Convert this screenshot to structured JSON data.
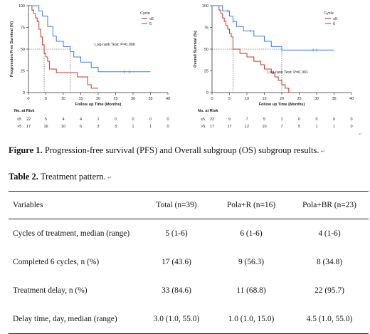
{
  "chart_data": [
    {
      "type": "line",
      "step": true,
      "ylabel": "Progression Free Survival (%)",
      "xlabel": "Follow up Time (Months)",
      "xlim": [
        0,
        40
      ],
      "ylim": [
        0,
        100
      ],
      "xticks": [
        "0",
        "5",
        "10",
        "15",
        "20",
        "25",
        "30",
        "35",
        "40"
      ],
      "yticks": [
        "0",
        "25",
        "50",
        "75",
        "100"
      ],
      "legend_title": "Cycle",
      "legend": [
        "≤5",
        "6"
      ],
      "annotation": "Log-rank Test: P=0.006",
      "series": [
        {
          "name": "≤5",
          "color": "#c0392b",
          "censor": [],
          "points": [
            [
              0,
              100
            ],
            [
              1,
              95
            ],
            [
              1.5,
              91
            ],
            [
              2,
              86
            ],
            [
              2.5,
              82
            ],
            [
              3,
              73
            ],
            [
              3.5,
              64
            ],
            [
              4,
              55
            ],
            [
              4.5,
              45
            ],
            [
              5,
              41
            ],
            [
              5.5,
              36
            ],
            [
              6,
              27
            ],
            [
              8,
              23
            ],
            [
              14,
              18
            ],
            [
              17,
              9
            ],
            [
              18,
              5
            ],
            [
              20,
              5
            ]
          ]
        },
        {
          "name": "6",
          "color": "#3b7dd8",
          "censor": [
            27.5,
            29
          ],
          "points": [
            [
              0,
              100
            ],
            [
              3,
              94
            ],
            [
              4,
              88
            ],
            [
              5.5,
              76
            ],
            [
              7,
              65
            ],
            [
              8,
              59
            ],
            [
              10,
              53
            ],
            [
              12,
              47
            ],
            [
              13,
              41
            ],
            [
              15,
              35
            ],
            [
              18,
              29
            ],
            [
              20,
              24
            ],
            [
              35,
              24
            ]
          ]
        }
      ],
      "median_lines": [
        4.5,
        12
      ],
      "risk_table": {
        "title": "No. at Risk",
        "times": [
          "0",
          "5",
          "10",
          "15",
          "20",
          "25",
          "30",
          "35",
          "40"
        ],
        "rows": [
          {
            "label": "≤5",
            "values": [
              "22",
              "5",
              "4",
              "4",
              "1",
              "0",
              "0",
              "0",
              "0"
            ]
          },
          {
            "label": ">5",
            "values": [
              "17",
              "16",
              "10",
              "6",
              "3",
              "3",
              "1",
              "1",
              "0"
            ]
          }
        ]
      }
    },
    {
      "type": "line",
      "step": true,
      "ylabel": "Overall Survival (%)",
      "xlabel": "Follow up Time (Months)",
      "xlim": [
        0,
        40
      ],
      "ylim": [
        0,
        100
      ],
      "xticks": [
        "0",
        "5",
        "10",
        "15",
        "20",
        "25",
        "30",
        "35",
        "40"
      ],
      "yticks": [
        "0",
        "25",
        "50",
        "75",
        "100"
      ],
      "legend_title": "Cycle",
      "legend": [
        "≤5",
        "6"
      ],
      "annotation": "Log-rank Test: P=0.001",
      "series": [
        {
          "name": "≤5",
          "color": "#c0392b",
          "censor": [],
          "points": [
            [
              0,
              100
            ],
            [
              2,
              95
            ],
            [
              2.5,
              91
            ],
            [
              3,
              86
            ],
            [
              3.5,
              82
            ],
            [
              4,
              77
            ],
            [
              4.5,
              73
            ],
            [
              5,
              68
            ],
            [
              5.5,
              64
            ],
            [
              6,
              50
            ],
            [
              8,
              45
            ],
            [
              10,
              41
            ],
            [
              12,
              36
            ],
            [
              14,
              32
            ],
            [
              15,
              27
            ],
            [
              17,
              23
            ],
            [
              18,
              18
            ],
            [
              19,
              14
            ],
            [
              20,
              9
            ],
            [
              21,
              5
            ],
            [
              22,
              0
            ]
          ]
        },
        {
          "name": "6",
          "color": "#3b7dd8",
          "censor": [
            4.5,
            6,
            11,
            29,
            30
          ],
          "points": [
            [
              0,
              100
            ],
            [
              3,
              94
            ],
            [
              5,
              88
            ],
            [
              6,
              82
            ],
            [
              7,
              76
            ],
            [
              9,
              71
            ],
            [
              11,
              71
            ],
            [
              12,
              65
            ],
            [
              15,
              59
            ],
            [
              17,
              53
            ],
            [
              20,
              49
            ],
            [
              35,
              49
            ]
          ]
        }
      ],
      "median_lines": [
        6,
        20
      ],
      "risk_table": {
        "title": "No. at Risk",
        "times": [
          "0",
          "5",
          "10",
          "15",
          "20",
          "25",
          "30",
          "35",
          "40"
        ],
        "rows": [
          {
            "label": "≤5",
            "values": [
              "22",
              "9",
              "7",
              "5",
              "1",
              "0",
              "0",
              "0",
              "0"
            ]
          },
          {
            "label": ">5",
            "values": [
              "17",
              "17",
              "12",
              "10",
              "7",
              "5",
              "1",
              "1",
              "0"
            ]
          }
        ]
      }
    }
  ],
  "figure_caption": {
    "label": "Figure 1.",
    "text": " Progression-free survival (PFS) and Overall subgroup (OS) subgroup results."
  },
  "table_caption": {
    "label": "Table 2.",
    "text": " Treatment pattern."
  },
  "table": {
    "headers": [
      "Variables",
      "Total (n=39)",
      "Pola+R (n=16)",
      "Pola+BR (n=23)"
    ],
    "rows": [
      [
        "Cycles of treatment, median (range)",
        "5 (1-6)",
        "6 (1-6)",
        "4 (1-6)"
      ],
      [
        "Completed 6 cycles, n (%)",
        "17 (43.6)",
        "9 (56.3)",
        "8 (34.8)"
      ],
      [
        "Treatment delay, n (%)",
        "33 (84.6)",
        "11 (68.8)",
        "22 (95.7)"
      ],
      [
        "Delay time, day, median (range)",
        "3.0 (1.0, 55.0)",
        "1.0 (1.0, 15.0)",
        "4.5 (1.0, 55.0)"
      ]
    ]
  }
}
